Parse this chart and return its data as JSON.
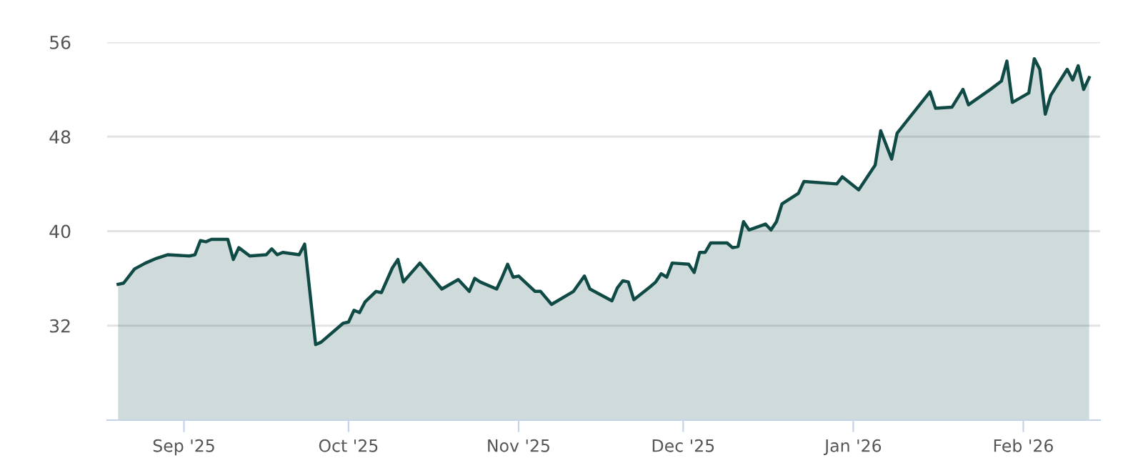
{
  "chart_data": {
    "type": "area",
    "x": [
      "2025-08-20",
      "2025-08-21",
      "2025-08-23",
      "2025-08-25",
      "2025-08-27",
      "2025-08-29",
      "2025-09-02",
      "2025-09-03",
      "2025-09-04",
      "2025-09-05",
      "2025-09-06",
      "2025-09-09",
      "2025-09-10",
      "2025-09-11",
      "2025-09-13",
      "2025-09-16",
      "2025-09-17",
      "2025-09-18",
      "2025-09-19",
      "2025-09-22",
      "2025-09-23",
      "2025-09-25",
      "2025-09-26",
      "2025-09-30",
      "2025-10-01",
      "2025-10-02",
      "2025-10-03",
      "2025-10-04",
      "2025-10-06",
      "2025-10-07",
      "2025-10-09",
      "2025-10-10",
      "2025-10-11",
      "2025-10-14",
      "2025-10-18",
      "2025-10-21",
      "2025-10-23",
      "2025-10-24",
      "2025-10-25",
      "2025-10-28",
      "2025-10-29",
      "2025-10-30",
      "2025-10-31",
      "2025-11-01",
      "2025-11-04",
      "2025-11-05",
      "2025-11-07",
      "2025-11-11",
      "2025-11-13",
      "2025-11-14",
      "2025-11-18",
      "2025-11-19",
      "2025-11-20",
      "2025-11-21",
      "2025-11-22",
      "2025-11-25",
      "2025-11-26",
      "2025-11-27",
      "2025-11-28",
      "2025-11-29",
      "2025-12-02",
      "2025-12-03",
      "2025-12-04",
      "2025-12-05",
      "2025-12-06",
      "2025-12-09",
      "2025-12-10",
      "2025-12-11",
      "2025-12-12",
      "2025-12-13",
      "2025-12-16",
      "2025-12-17",
      "2025-12-18",
      "2025-12-19",
      "2025-12-22",
      "2025-12-23",
      "2025-12-29",
      "2025-12-30",
      "2026-01-02",
      "2026-01-05",
      "2026-01-06",
      "2026-01-08",
      "2026-01-09",
      "2026-01-15",
      "2026-01-16",
      "2026-01-19",
      "2026-01-21",
      "2026-01-22",
      "2026-01-26",
      "2026-01-28",
      "2026-01-29",
      "2026-01-30",
      "2026-02-02",
      "2026-02-03",
      "2026-02-04",
      "2026-02-05",
      "2026-02-06",
      "2026-02-09",
      "2026-02-10",
      "2026-02-11",
      "2026-02-12",
      "2026-02-13"
    ],
    "series": [
      {
        "color": "#0f4a45",
        "values": [
          35.5,
          35.6,
          36.8,
          37.3,
          37.7,
          38.0,
          37.9,
          38.0,
          39.2,
          39.1,
          39.3,
          39.3,
          37.6,
          38.6,
          37.9,
          38.0,
          38.5,
          38.0,
          38.2,
          38.0,
          38.9,
          30.4,
          30.6,
          32.2,
          32.3,
          33.3,
          33.1,
          34.0,
          34.9,
          34.8,
          36.9,
          37.6,
          35.7,
          37.3,
          35.1,
          35.9,
          34.9,
          36.0,
          35.7,
          35.1,
          36.1,
          37.2,
          36.1,
          36.2,
          34.9,
          34.9,
          33.8,
          34.9,
          36.2,
          35.1,
          34.1,
          35.2,
          35.8,
          35.7,
          34.2,
          35.3,
          35.7,
          36.4,
          36.1,
          37.3,
          37.2,
          36.5,
          38.2,
          38.2,
          39.0,
          39.0,
          38.6,
          38.7,
          40.8,
          40.1,
          40.6,
          40.1,
          40.8,
          42.3,
          43.2,
          44.2,
          44.0,
          44.6,
          43.5,
          45.6,
          48.5,
          46.1,
          48.3,
          51.8,
          50.4,
          50.5,
          52.0,
          50.7,
          52.0,
          52.7,
          54.4,
          50.9,
          51.7,
          54.6,
          53.7,
          49.9,
          51.5,
          53.7,
          52.8,
          54.0,
          52.0,
          53.0
        ]
      }
    ],
    "xlim": [
      "2025-08-18",
      "2026-02-15"
    ],
    "xticks": [
      {
        "value": "2025-09-01",
        "label": "Sep '25"
      },
      {
        "value": "2025-10-01",
        "label": "Oct '25"
      },
      {
        "value": "2025-11-01",
        "label": "Nov '25"
      },
      {
        "value": "2025-12-01",
        "label": "Dec '25"
      },
      {
        "value": "2026-01-01",
        "label": "Jan '26"
      },
      {
        "value": "2026-02-01",
        "label": "Feb '26"
      }
    ],
    "ylim": [
      24,
      56
    ],
    "yticks": [
      32,
      40,
      48,
      56
    ],
    "grid": "y",
    "legend": false
  }
}
